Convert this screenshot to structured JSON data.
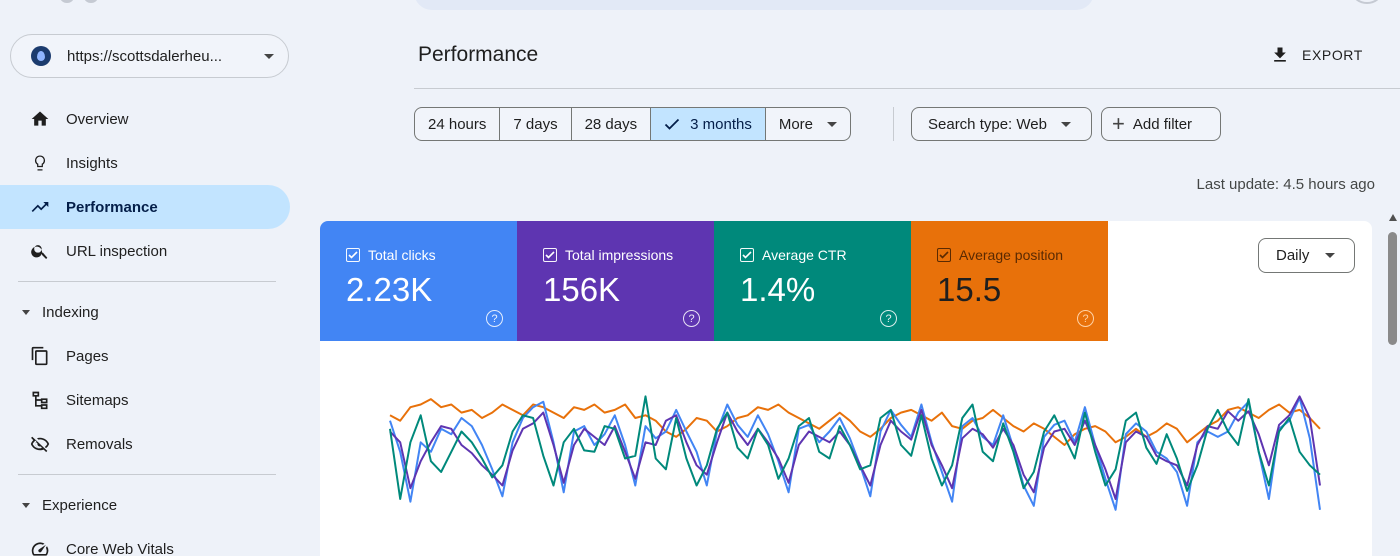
{
  "sidebar": {
    "property_url": "https://scottsdalerheu...",
    "nav": [
      {
        "label": "Overview",
        "icon": "home-icon"
      },
      {
        "label": "Insights",
        "icon": "lightbulb-icon"
      },
      {
        "label": "Performance",
        "icon": "trending-up-icon",
        "active": true
      },
      {
        "label": "URL inspection",
        "icon": "search-icon"
      }
    ],
    "sections": [
      {
        "label": "Indexing",
        "items": [
          {
            "label": "Pages",
            "icon": "pages-icon"
          },
          {
            "label": "Sitemaps",
            "icon": "sitemap-icon"
          },
          {
            "label": "Removals",
            "icon": "visibility-off-icon"
          }
        ]
      },
      {
        "label": "Experience",
        "items": [
          {
            "label": "Core Web Vitals",
            "icon": "speed-icon"
          }
        ]
      }
    ]
  },
  "header": {
    "title": "Performance",
    "export_label": "EXPORT"
  },
  "filters": {
    "date_ranges": [
      "24 hours",
      "7 days",
      "28 days",
      "3 months",
      "More"
    ],
    "selected_range": "3 months",
    "search_type": "Search type: Web",
    "add_filter": "Add filter",
    "last_update": "Last update: 4.5 hours ago"
  },
  "metrics": [
    {
      "label": "Total clicks",
      "value": "2.23K",
      "color": "#4285f4"
    },
    {
      "label": "Total impressions",
      "value": "156K",
      "color": "#5e35b1"
    },
    {
      "label": "Average CTR",
      "value": "1.4%",
      "color": "#00897b"
    },
    {
      "label": "Average position",
      "value": "15.5",
      "color": "#e8710a"
    }
  ],
  "granularity": "Daily",
  "chart_data": {
    "type": "line",
    "series": [
      {
        "name": "Total clicks",
        "color": "#4285f4",
        "values": [
          0.78,
          0.55,
          0.18,
          0.62,
          0.55,
          0.72,
          0.68,
          0.8,
          0.74,
          0.6,
          0.42,
          0.22,
          0.62,
          0.8,
          0.88,
          0.92,
          0.62,
          0.25,
          0.7,
          0.74,
          0.6,
          0.68,
          0.82,
          0.6,
          0.3,
          0.74,
          0.65,
          0.7,
          0.86,
          0.7,
          0.55,
          0.3,
          0.7,
          0.9,
          0.75,
          0.66,
          0.82,
          0.68,
          0.48,
          0.25,
          0.72,
          0.75,
          0.62,
          0.7,
          0.8,
          0.65,
          0.45,
          0.22,
          0.7,
          0.86,
          0.75,
          0.66,
          0.9,
          0.62,
          0.4,
          0.18,
          0.74,
          0.8,
          0.66,
          0.6,
          0.82,
          0.58,
          0.3,
          0.15,
          0.66,
          0.75,
          0.78,
          0.62,
          0.88,
          0.6,
          0.35,
          0.12,
          0.68,
          0.76,
          0.7,
          0.55,
          0.5,
          0.4,
          0.15,
          0.62,
          0.7,
          0.66,
          0.7,
          0.84,
          0.92,
          0.55,
          0.2,
          0.72,
          0.78,
          0.95,
          0.65,
          0.12
        ]
      },
      {
        "name": "Total impressions",
        "color": "#5e35b1",
        "values": [
          0.7,
          0.62,
          0.28,
          0.48,
          0.62,
          0.74,
          0.72,
          0.6,
          0.54,
          0.45,
          0.38,
          0.3,
          0.56,
          0.72,
          0.76,
          0.84,
          0.6,
          0.32,
          0.6,
          0.72,
          0.66,
          0.6,
          0.74,
          0.55,
          0.35,
          0.62,
          0.6,
          0.78,
          0.82,
          0.62,
          0.45,
          0.38,
          0.62,
          0.84,
          0.7,
          0.6,
          0.72,
          0.62,
          0.5,
          0.32,
          0.6,
          0.7,
          0.66,
          0.62,
          0.7,
          0.6,
          0.45,
          0.3,
          0.6,
          0.78,
          0.7,
          0.64,
          0.86,
          0.6,
          0.45,
          0.28,
          0.65,
          0.72,
          0.68,
          0.58,
          0.72,
          0.6,
          0.38,
          0.25,
          0.58,
          0.7,
          0.72,
          0.6,
          0.78,
          0.6,
          0.42,
          0.2,
          0.62,
          0.7,
          0.66,
          0.52,
          0.48,
          0.45,
          0.3,
          0.6,
          0.74,
          0.72,
          0.85,
          0.78,
          0.85,
          0.68,
          0.45,
          0.75,
          0.82,
          0.96,
          0.8,
          0.3
        ]
      },
      {
        "name": "Average CTR",
        "color": "#00897b",
        "values": [
          0.72,
          0.2,
          0.62,
          0.82,
          0.48,
          0.4,
          0.55,
          0.7,
          0.62,
          0.5,
          0.36,
          0.45,
          0.7,
          0.82,
          0.8,
          0.52,
          0.3,
          0.62,
          0.72,
          0.56,
          0.55,
          0.74,
          0.72,
          0.5,
          0.52,
          0.96,
          0.5,
          0.42,
          0.8,
          0.5,
          0.3,
          0.45,
          0.72,
          0.84,
          0.58,
          0.5,
          0.72,
          0.6,
          0.35,
          0.5,
          0.74,
          0.8,
          0.55,
          0.5,
          0.74,
          0.6,
          0.42,
          0.45,
          0.8,
          0.86,
          0.6,
          0.52,
          0.82,
          0.5,
          0.3,
          0.45,
          0.8,
          0.9,
          0.55,
          0.48,
          0.76,
          0.55,
          0.28,
          0.4,
          0.7,
          0.82,
          0.66,
          0.5,
          0.84,
          0.55,
          0.3,
          0.42,
          0.78,
          0.84,
          0.58,
          0.46,
          0.68,
          0.5,
          0.26,
          0.45,
          0.72,
          0.86,
          0.7,
          0.6,
          0.94,
          0.55,
          0.3,
          0.7,
          0.8,
          0.55,
          0.45,
          0.38
        ]
      },
      {
        "name": "Average position",
        "color": "#e8710a",
        "values": [
          0.82,
          0.78,
          0.88,
          0.9,
          0.94,
          0.88,
          0.9,
          0.84,
          0.86,
          0.8,
          0.84,
          0.9,
          0.86,
          0.82,
          0.9,
          0.88,
          0.84,
          0.8,
          0.88,
          0.86,
          0.9,
          0.84,
          0.86,
          0.9,
          0.8,
          0.82,
          0.78,
          0.7,
          0.66,
          0.72,
          0.8,
          0.78,
          0.7,
          0.74,
          0.8,
          0.82,
          0.88,
          0.86,
          0.9,
          0.84,
          0.8,
          0.76,
          0.72,
          0.78,
          0.84,
          0.78,
          0.7,
          0.66,
          0.72,
          0.8,
          0.84,
          0.86,
          0.82,
          0.78,
          0.84,
          0.74,
          0.72,
          0.78,
          0.8,
          0.86,
          0.8,
          0.74,
          0.7,
          0.76,
          0.72,
          0.66,
          0.6,
          0.68,
          0.72,
          0.74,
          0.7,
          0.62,
          0.66,
          0.72,
          0.66,
          0.7,
          0.76,
          0.72,
          0.62,
          0.68,
          0.74,
          0.78,
          0.86,
          0.88,
          0.84,
          0.8,
          0.86,
          0.9,
          0.84,
          0.86,
          0.8,
          0.72
        ]
      }
    ]
  }
}
